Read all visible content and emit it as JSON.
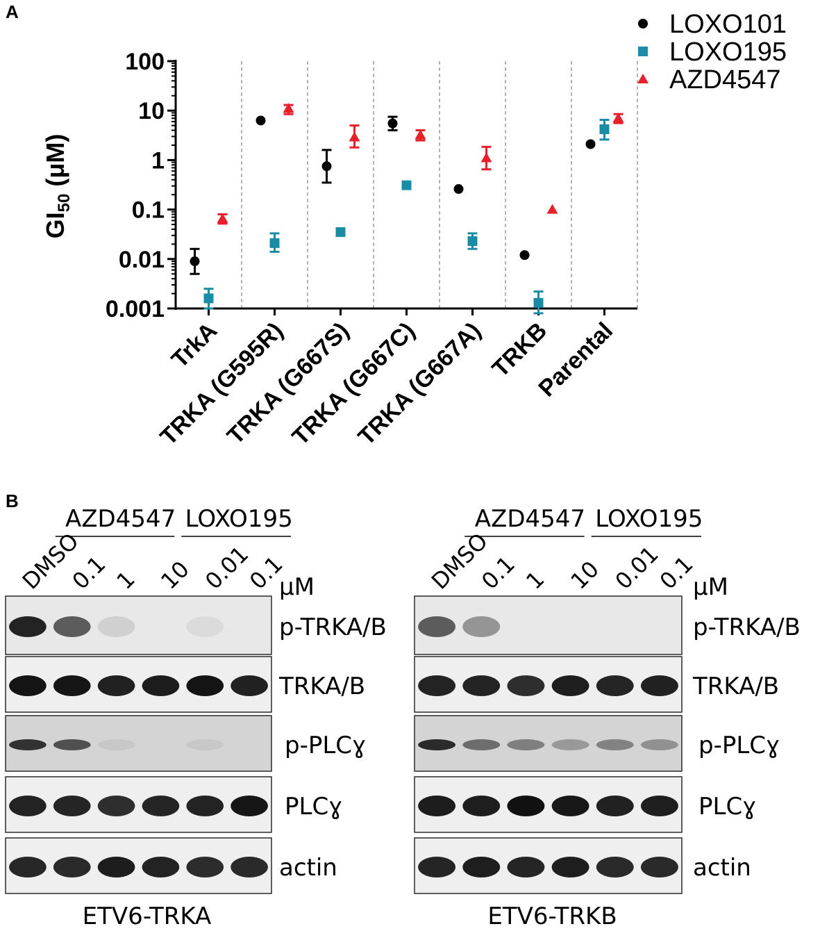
{
  "panel_a_letter": "A",
  "panel_b_letter": "B",
  "chart_data": {
    "type": "scatter",
    "ylabel_main": "GI",
    "ylabel_sub": "50",
    "ylabel_rest": " (μM)",
    "yscale": "log",
    "ylim": [
      0.001,
      100
    ],
    "yticks": [
      100,
      10,
      1,
      0.1,
      0.01,
      0.001
    ],
    "ytick_labels": [
      "100",
      "10",
      "1",
      "0.1",
      "0.01",
      "0.001"
    ],
    "categories": [
      "TrkA",
      "TRKA (G595R)",
      "TRKA (G667S)",
      "TRKA (G667C)",
      "TRKA (G667A)",
      "TRKB",
      "Parental"
    ],
    "legend_position": "top-right",
    "series": [
      {
        "name": "LOXO101",
        "marker": "circle",
        "color": "#000000",
        "values": [
          0.009,
          6.3,
          0.75,
          5.5,
          0.26,
          0.012,
          2.1
        ],
        "err_low": [
          0.005,
          null,
          0.35,
          4.0,
          null,
          null,
          null
        ],
        "err_high": [
          0.016,
          null,
          1.6,
          7.5,
          null,
          null,
          null
        ]
      },
      {
        "name": "LOXO195",
        "marker": "square",
        "color": "#1a8ca6",
        "values": [
          0.0016,
          0.021,
          0.035,
          0.31,
          0.023,
          0.0013,
          4.2
        ],
        "err_low": [
          0.001,
          0.014,
          null,
          null,
          0.016,
          0.0008,
          2.6
        ],
        "err_high": [
          0.0025,
          0.033,
          null,
          null,
          0.033,
          0.0022,
          6.5
        ]
      },
      {
        "name": "AZD4547",
        "marker": "triangle",
        "color": "#e8202a",
        "values": [
          0.065,
          11,
          2.9,
          3.2,
          1.1,
          0.1,
          7.0
        ],
        "err_low": [
          0.052,
          8.5,
          1.8,
          2.5,
          0.65,
          null,
          5.6
        ],
        "err_high": [
          0.08,
          13,
          5.0,
          4.0,
          1.85,
          null,
          8.5
        ]
      }
    ]
  },
  "blots": {
    "group_labels": [
      "AZD4547",
      "LOXO195"
    ],
    "lane_labels": [
      "DMSO",
      "0.1",
      "1",
      "10",
      "0.01",
      "0.1"
    ],
    "unit": "μM",
    "row_labels": [
      "p-TRKA/B",
      "TRKA/B",
      "p-PLCɣ",
      "PLCɣ",
      "actin"
    ],
    "panels": [
      {
        "caption": "ETV6-TRKA",
        "intensities": [
          [
            1.0,
            0.7,
            0.12,
            0.0,
            0.06,
            0.0
          ],
          [
            1.0,
            1.0,
            1.0,
            1.0,
            1.0,
            1.0
          ],
          [
            0.9,
            0.7,
            0.06,
            0.0,
            0.06,
            0.0
          ],
          [
            0.95,
            0.95,
            0.92,
            0.92,
            1.0,
            1.0
          ],
          [
            0.95,
            0.95,
            0.95,
            0.95,
            0.95,
            0.95
          ]
        ]
      },
      {
        "caption": "ETV6-TRKB",
        "intensities": [
          [
            0.65,
            0.4,
            0.0,
            0.0,
            0.0,
            0.0
          ],
          [
            1.0,
            0.95,
            0.92,
            1.0,
            0.95,
            1.0
          ],
          [
            0.9,
            0.55,
            0.45,
            0.3,
            0.45,
            0.35
          ],
          [
            1.0,
            1.0,
            1.0,
            1.0,
            1.0,
            1.0
          ],
          [
            0.95,
            0.95,
            0.95,
            0.95,
            0.95,
            0.95
          ]
        ]
      }
    ]
  }
}
